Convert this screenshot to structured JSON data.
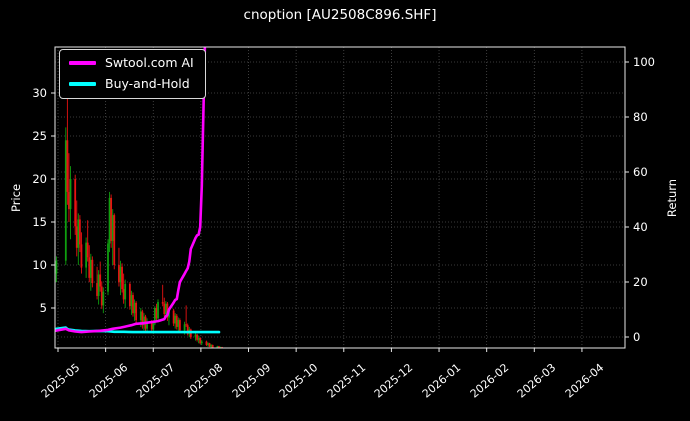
{
  "title": "cnoption [AU2508C896.SHF]",
  "legend": {
    "items": [
      {
        "label": "Swtool.com AI",
        "color": "#ff00ff"
      },
      {
        "label": "Buy-and-Hold",
        "color": "#00ffff"
      }
    ]
  },
  "chart_data": {
    "type": "candlestick+line",
    "title": "cnoption [AU2508C896.SHF]",
    "x_axis": {
      "start_date": "2025-05-01",
      "tick_labels": [
        "2025-05",
        "2025-06",
        "2025-07",
        "2025-08",
        "2025-09",
        "2025-10",
        "2025-11",
        "2025-12",
        "2026-01",
        "2026-02",
        "2026-03",
        "2026-04"
      ],
      "label_rotation_deg": 45,
      "grid": true
    },
    "price_axis": {
      "label": "Price",
      "ticks": [
        5,
        10,
        15,
        20,
        25,
        30
      ],
      "range": [
        0.4,
        35.3
      ],
      "side": "left"
    },
    "return_axis": {
      "label": "Return",
      "ticks": [
        0,
        20,
        40,
        60,
        80,
        100
      ],
      "range": [
        -4,
        105.5
      ],
      "side": "right"
    },
    "colors": {
      "background": "#000000",
      "text": "#ffffff",
      "grid": "#4d4d4d",
      "frame": "#e8e8e8",
      "up": "#0f9e0f",
      "down": "#e81212"
    },
    "candles_format": [
      "date",
      "open",
      "high",
      "low",
      "close"
    ],
    "candles": [
      [
        "2025-04-29",
        8.0,
        9.5,
        7.0,
        9.0
      ],
      [
        "2025-04-30",
        9.0,
        11.0,
        8.0,
        10.5
      ],
      [
        "2025-05-06",
        10.5,
        26.0,
        10.0,
        24.5
      ],
      [
        "2025-05-07",
        24.5,
        31.0,
        17.0,
        18.5
      ],
      [
        "2025-05-08",
        18.5,
        23.0,
        15.0,
        16.5
      ],
      [
        "2025-05-09",
        16.5,
        21.5,
        13.0,
        20.0
      ],
      [
        "2025-05-12",
        20.0,
        20.5,
        13.5,
        14.5
      ],
      [
        "2025-05-13",
        14.5,
        17.5,
        11.0,
        12.0
      ],
      [
        "2025-05-14",
        12.0,
        16.0,
        10.0,
        15.3
      ],
      [
        "2025-05-15",
        15.3,
        15.8,
        11.5,
        12.4
      ],
      [
        "2025-05-16",
        12.4,
        13.8,
        9.0,
        9.7
      ],
      [
        "2025-05-19",
        9.7,
        13.2,
        8.5,
        12.6
      ],
      [
        "2025-05-20",
        12.6,
        15.2,
        10.4,
        10.9
      ],
      [
        "2025-05-21",
        10.9,
        12.3,
        8.0,
        8.5
      ],
      [
        "2025-05-22",
        8.5,
        11.3,
        7.0,
        10.6
      ],
      [
        "2025-05-23",
        10.6,
        11.0,
        7.4,
        7.9
      ],
      [
        "2025-05-26",
        7.9,
        9.8,
        6.0,
        6.4
      ],
      [
        "2025-05-27",
        6.4,
        9.4,
        5.4,
        8.9
      ],
      [
        "2025-05-28",
        8.9,
        10.4,
        6.9,
        7.5
      ],
      [
        "2025-05-29",
        7.5,
        8.1,
        4.9,
        5.3
      ],
      [
        "2025-05-30",
        5.3,
        7.4,
        4.4,
        6.9
      ],
      [
        "2025-06-02",
        6.9,
        13.0,
        6.5,
        12.5
      ],
      [
        "2025-06-03",
        12.5,
        18.5,
        11.5,
        17.8
      ],
      [
        "2025-06-04",
        17.8,
        18.2,
        12.0,
        12.8
      ],
      [
        "2025-06-05",
        12.8,
        16.5,
        10.0,
        15.8
      ],
      [
        "2025-06-06",
        15.8,
        16.0,
        9.5,
        10.0
      ],
      [
        "2025-06-09",
        10.0,
        12.0,
        7.5,
        8.0
      ],
      [
        "2025-06-10",
        8.0,
        10.5,
        6.5,
        9.8
      ],
      [
        "2025-06-11",
        9.8,
        10.2,
        6.8,
        7.2
      ],
      [
        "2025-06-12",
        7.2,
        9.0,
        5.5,
        6.0
      ],
      [
        "2025-06-13",
        6.0,
        8.3,
        5.0,
        7.8
      ],
      [
        "2025-06-16",
        7.8,
        8.0,
        4.8,
        5.2
      ],
      [
        "2025-06-17",
        5.2,
        7.0,
        4.2,
        6.5
      ],
      [
        "2025-06-18",
        6.5,
        6.8,
        4.0,
        4.4
      ],
      [
        "2025-06-19",
        4.4,
        6.0,
        3.5,
        5.6
      ],
      [
        "2025-06-20",
        5.6,
        5.8,
        3.2,
        3.6
      ],
      [
        "2025-06-23",
        3.6,
        5.0,
        2.8,
        4.6
      ],
      [
        "2025-06-24",
        4.6,
        4.8,
        2.6,
        3.0
      ],
      [
        "2025-06-25",
        3.0,
        4.4,
        2.4,
        4.0
      ],
      [
        "2025-06-26",
        4.0,
        4.2,
        2.3,
        2.6
      ],
      [
        "2025-06-27",
        2.6,
        3.8,
        2.1,
        3.4
      ],
      [
        "2025-06-30",
        3.4,
        3.6,
        2.2,
        2.5
      ],
      [
        "2025-07-01",
        2.5,
        3.5,
        2.0,
        3.2
      ],
      [
        "2025-07-02",
        3.2,
        5.2,
        3.0,
        5.0
      ],
      [
        "2025-07-03",
        5.0,
        5.5,
        3.4,
        3.8
      ],
      [
        "2025-07-04",
        3.8,
        6.0,
        3.5,
        5.7
      ],
      [
        "2025-07-07",
        5.7,
        7.7,
        5.2,
        5.5
      ],
      [
        "2025-07-08",
        5.5,
        6.2,
        4.0,
        4.3
      ],
      [
        "2025-07-09",
        4.3,
        5.8,
        3.8,
        5.5
      ],
      [
        "2025-07-10",
        5.5,
        5.7,
        3.5,
        3.9
      ],
      [
        "2025-07-11",
        3.9,
        5.0,
        3.0,
        4.7
      ],
      [
        "2025-07-14",
        4.7,
        4.9,
        2.9,
        3.2
      ],
      [
        "2025-07-15",
        3.2,
        4.4,
        2.6,
        4.1
      ],
      [
        "2025-07-16",
        4.1,
        4.3,
        2.5,
        2.8
      ],
      [
        "2025-07-17",
        2.8,
        3.9,
        2.2,
        3.6
      ],
      [
        "2025-07-18",
        3.6,
        3.8,
        2.1,
        2.4
      ],
      [
        "2025-07-21",
        2.4,
        3.4,
        1.9,
        3.1
      ],
      [
        "2025-07-22",
        3.1,
        5.3,
        2.8,
        3.0
      ],
      [
        "2025-07-23",
        3.0,
        3.2,
        1.8,
        2.0
      ],
      [
        "2025-07-24",
        2.0,
        2.8,
        1.6,
        2.5
      ],
      [
        "2025-07-25",
        2.5,
        2.6,
        1.4,
        1.6
      ],
      [
        "2025-07-28",
        1.6,
        2.2,
        1.2,
        1.9
      ],
      [
        "2025-07-29",
        1.9,
        2.0,
        1.1,
        1.3
      ],
      [
        "2025-07-30",
        1.3,
        1.8,
        0.9,
        1.5
      ],
      [
        "2025-07-31",
        1.5,
        1.6,
        0.8,
        0.9
      ],
      [
        "2025-08-01",
        0.9,
        1.3,
        0.7,
        1.1
      ],
      [
        "2025-08-04",
        1.1,
        1.2,
        0.6,
        0.7
      ],
      [
        "2025-08-05",
        0.7,
        1.0,
        0.5,
        0.9
      ],
      [
        "2025-08-06",
        0.9,
        0.95,
        0.45,
        0.5
      ],
      [
        "2025-08-07",
        0.5,
        0.8,
        0.4,
        0.7
      ],
      [
        "2025-08-08",
        0.7,
        0.75,
        0.35,
        0.4
      ],
      [
        "2025-08-11",
        0.4,
        0.6,
        0.3,
        0.55
      ],
      [
        "2025-08-12",
        0.55,
        0.6,
        0.28,
        0.32
      ],
      [
        "2025-08-13",
        0.32,
        0.5,
        0.25,
        0.45
      ],
      [
        "2025-08-14",
        0.45,
        0.48,
        0.22,
        0.25
      ],
      [
        "2025-08-15",
        0.25,
        0.4,
        0.2,
        0.35
      ]
    ],
    "series": [
      {
        "name": "Swtool.com AI",
        "color": "#ff00ff",
        "axis": "return",
        "points": [
          [
            "2025-04-29",
            2.2
          ],
          [
            "2025-05-06",
            3.0
          ],
          [
            "2025-05-08",
            2.4
          ],
          [
            "2025-05-12",
            2.0
          ],
          [
            "2025-05-16",
            1.8
          ],
          [
            "2025-05-21",
            2.0
          ],
          [
            "2025-05-27",
            2.2
          ],
          [
            "2025-06-02",
            2.6
          ],
          [
            "2025-06-05",
            3.0
          ],
          [
            "2025-06-10",
            3.4
          ],
          [
            "2025-06-13",
            3.8
          ],
          [
            "2025-06-17",
            4.3
          ],
          [
            "2025-06-20",
            4.8
          ],
          [
            "2025-06-24",
            5.0
          ],
          [
            "2025-06-27",
            5.2
          ],
          [
            "2025-06-30",
            5.4
          ],
          [
            "2025-07-02",
            5.6
          ],
          [
            "2025-07-04",
            5.8
          ],
          [
            "2025-07-08",
            6.5
          ],
          [
            "2025-07-09",
            7.5
          ],
          [
            "2025-07-10",
            8.0
          ],
          [
            "2025-07-11",
            10.0
          ],
          [
            "2025-07-14",
            12.5
          ],
          [
            "2025-07-15",
            13.5
          ],
          [
            "2025-07-16",
            13.8
          ],
          [
            "2025-07-17",
            17.0
          ],
          [
            "2025-07-18",
            20.0
          ],
          [
            "2025-07-21",
            23.0
          ],
          [
            "2025-07-22",
            24.0
          ],
          [
            "2025-07-23",
            25.0
          ],
          [
            "2025-07-24",
            27.5
          ],
          [
            "2025-07-25",
            32.0
          ],
          [
            "2025-07-28",
            36.0
          ],
          [
            "2025-07-29",
            37.0
          ],
          [
            "2025-07-30",
            37.2
          ],
          [
            "2025-07-31",
            40.0
          ],
          [
            "2025-08-01",
            55.0
          ],
          [
            "2025-08-02",
            80.0
          ],
          [
            "2025-08-03",
            106.0
          ]
        ]
      },
      {
        "name": "Buy-and-Hold",
        "color": "#00ffff",
        "axis": "return",
        "points": [
          [
            "2025-04-29",
            2.4
          ],
          [
            "2025-04-30",
            3.0
          ],
          [
            "2025-05-06",
            3.4
          ],
          [
            "2025-05-07",
            2.9
          ],
          [
            "2025-05-08",
            2.7
          ],
          [
            "2025-05-12",
            2.4
          ],
          [
            "2025-05-16",
            2.2
          ],
          [
            "2025-05-21",
            2.1
          ],
          [
            "2025-05-27",
            2.2
          ],
          [
            "2025-06-02",
            2.1
          ],
          [
            "2025-06-06",
            1.9
          ],
          [
            "2025-06-12",
            1.9
          ],
          [
            "2025-06-18",
            1.8
          ],
          [
            "2025-06-25",
            1.8
          ],
          [
            "2025-07-02",
            1.8
          ],
          [
            "2025-07-10",
            1.8
          ],
          [
            "2025-07-18",
            1.8
          ],
          [
            "2025-07-28",
            1.8
          ],
          [
            "2025-08-05",
            1.8
          ],
          [
            "2025-08-12",
            1.8
          ]
        ]
      }
    ]
  }
}
